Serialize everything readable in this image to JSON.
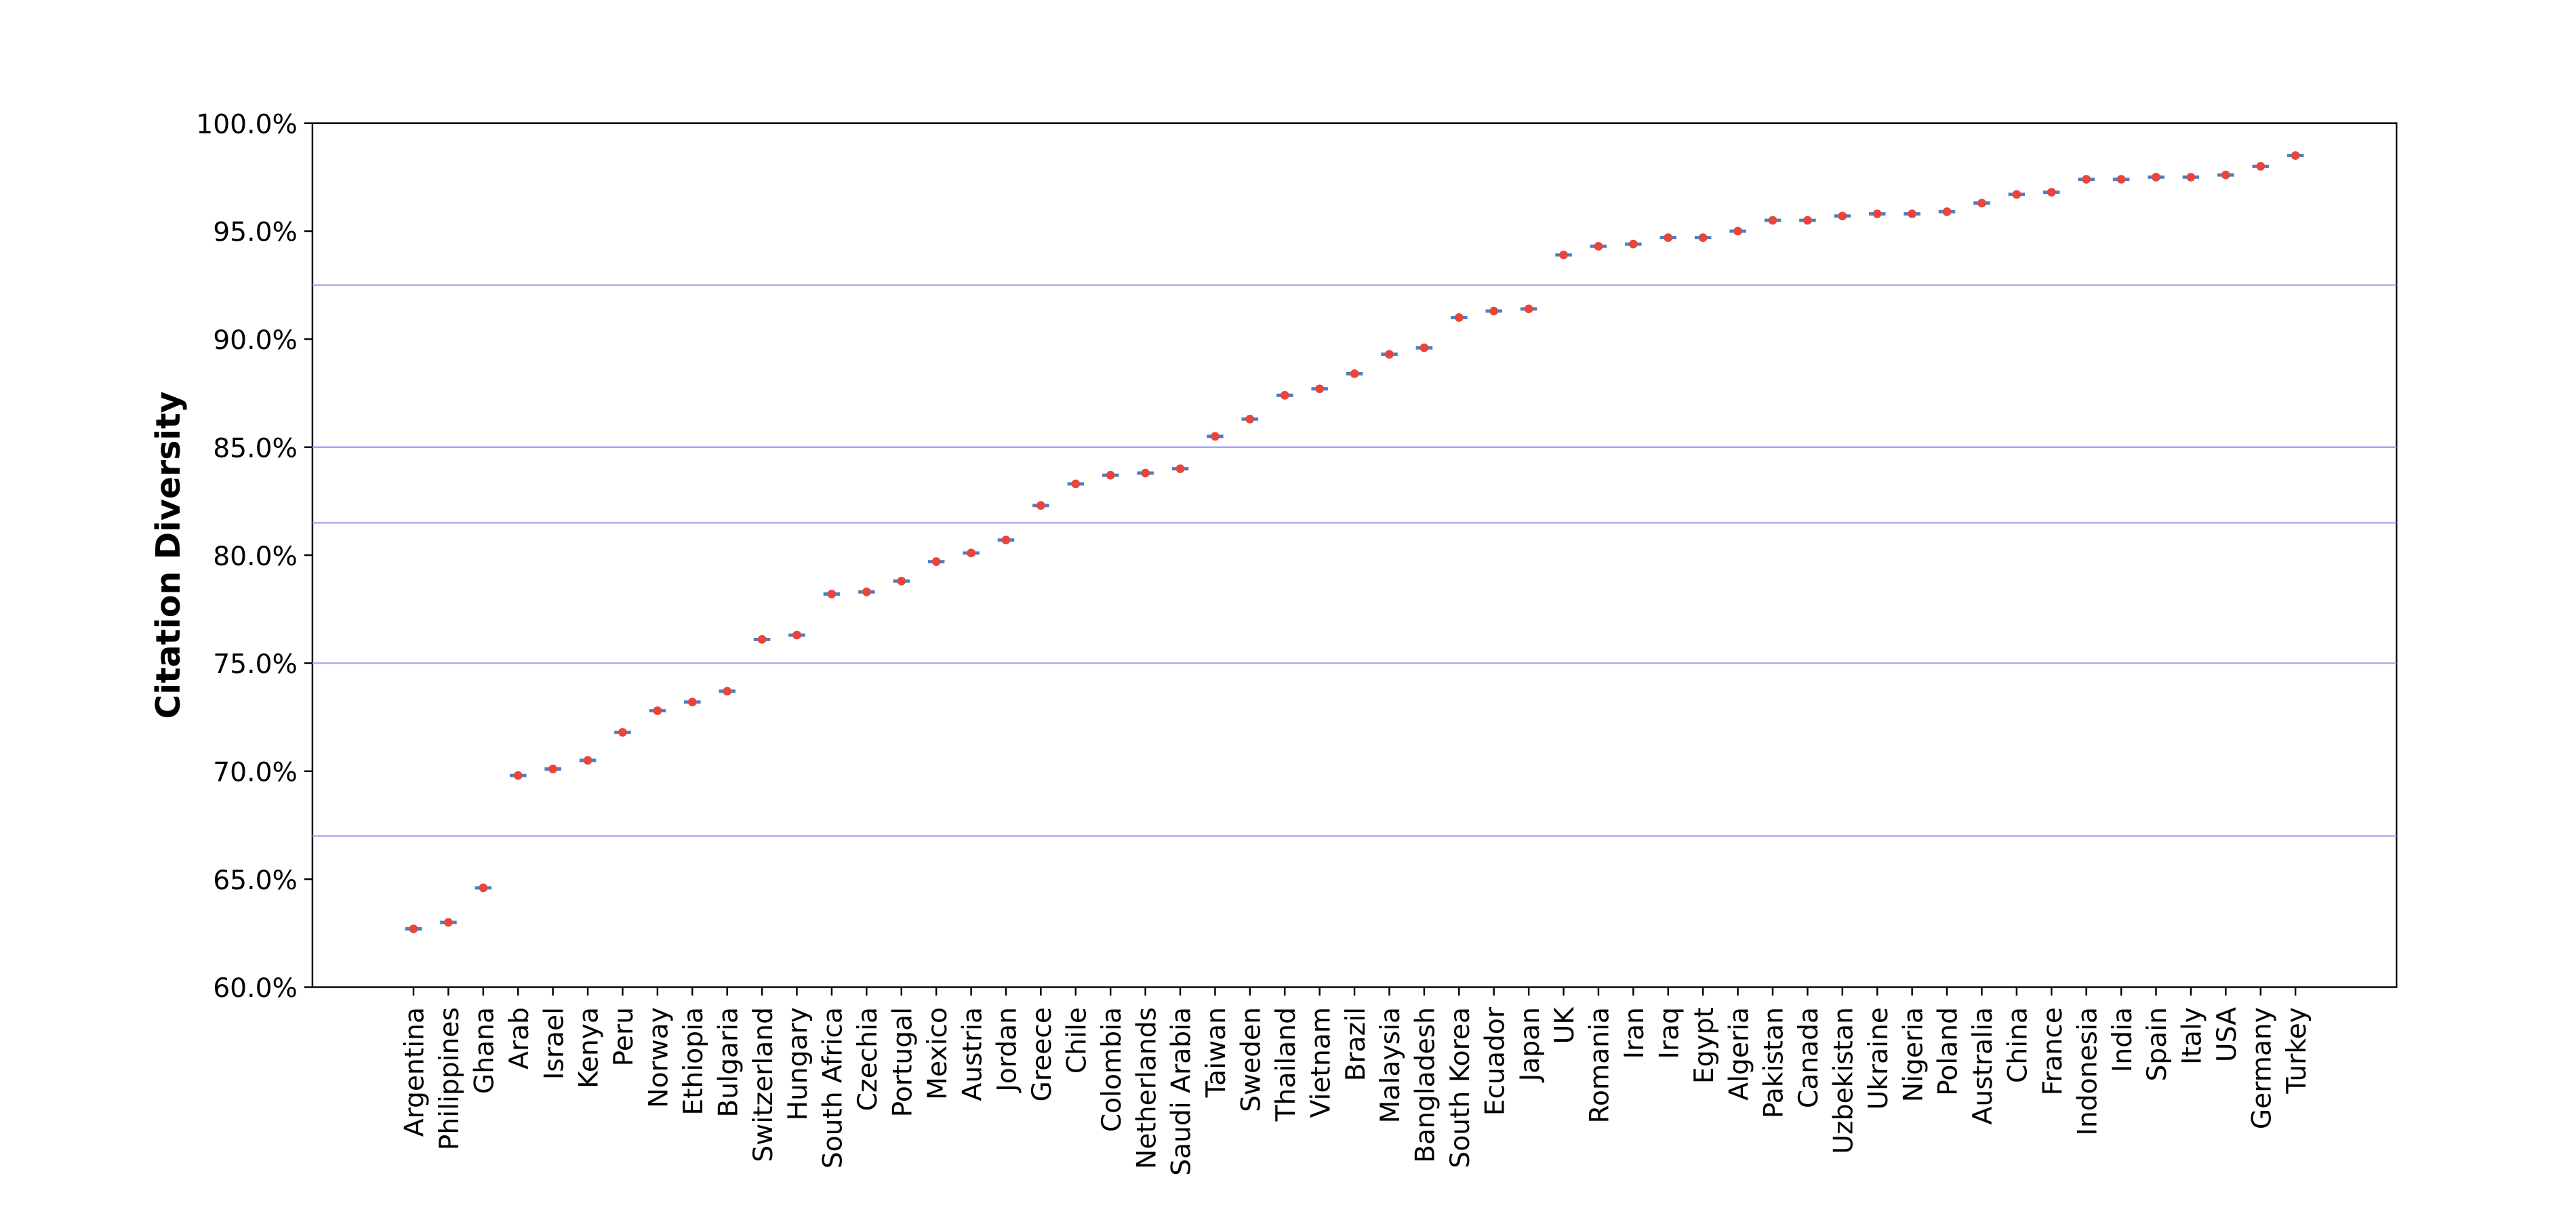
{
  "chart_data": {
    "type": "scatter",
    "ylabel": "Citation Diversity",
    "categories": [
      "Argentina",
      "Philippines",
      "Ghana",
      "Arab",
      "Israel",
      "Kenya",
      "Peru",
      "Norway",
      "Ethiopia",
      "Bulgaria",
      "Switzerland",
      "Hungary",
      "South Africa",
      "Czechia",
      "Portugal",
      "Mexico",
      "Austria",
      "Jordan",
      "Greece",
      "Chile",
      "Colombia",
      "Netherlands",
      "Saudi Arabia",
      "Taiwan",
      "Sweden",
      "Thailand",
      "Vietnam",
      "Brazil",
      "Malaysia",
      "Bangladesh",
      "South Korea",
      "Ecuador",
      "Japan",
      "UK",
      "Romania",
      "Iran",
      "Iraq",
      "Egypt",
      "Algeria",
      "Pakistan",
      "Canada",
      "Uzbekistan",
      "Ukraine",
      "Nigeria",
      "Poland",
      "Australia",
      "China",
      "France",
      "Indonesia",
      "India",
      "Spain",
      "Italy",
      "USA",
      "Germany",
      "Turkey"
    ],
    "values": [
      62.7,
      63.0,
      64.6,
      69.8,
      70.1,
      70.5,
      71.8,
      72.8,
      73.2,
      73.7,
      76.1,
      76.3,
      78.2,
      78.3,
      78.8,
      79.7,
      80.1,
      80.7,
      82.3,
      83.3,
      83.7,
      83.8,
      84.0,
      85.5,
      86.3,
      87.4,
      87.7,
      88.4,
      89.3,
      89.6,
      91.0,
      91.3,
      91.4,
      93.9,
      94.3,
      94.4,
      94.7,
      94.7,
      95.0,
      95.5,
      95.5,
      95.7,
      95.8,
      95.8,
      95.9,
      96.3,
      96.7,
      96.8,
      97.4,
      97.4,
      97.5,
      97.5,
      97.6,
      98.0,
      98.5
    ],
    "color": "#e8453c",
    "edge_color": "#4a7fc1",
    "hlines": [
      92.5,
      85.0,
      81.5,
      75.0,
      67.0
    ],
    "hline_color": "#a6a6f5",
    "ylim": [
      60,
      100
    ],
    "yticks": [
      {
        "value": 60,
        "label": "60.0%"
      },
      {
        "value": 65,
        "label": "65.0%"
      },
      {
        "value": 70,
        "label": "70.0%"
      },
      {
        "value": 75,
        "label": "75.0%"
      },
      {
        "value": 80,
        "label": "80.0%"
      },
      {
        "value": 85,
        "label": "85.0%"
      },
      {
        "value": 90,
        "label": "90.0%"
      },
      {
        "value": 95,
        "label": "95.0%"
      },
      {
        "value": 100,
        "label": "100.0%"
      }
    ]
  }
}
